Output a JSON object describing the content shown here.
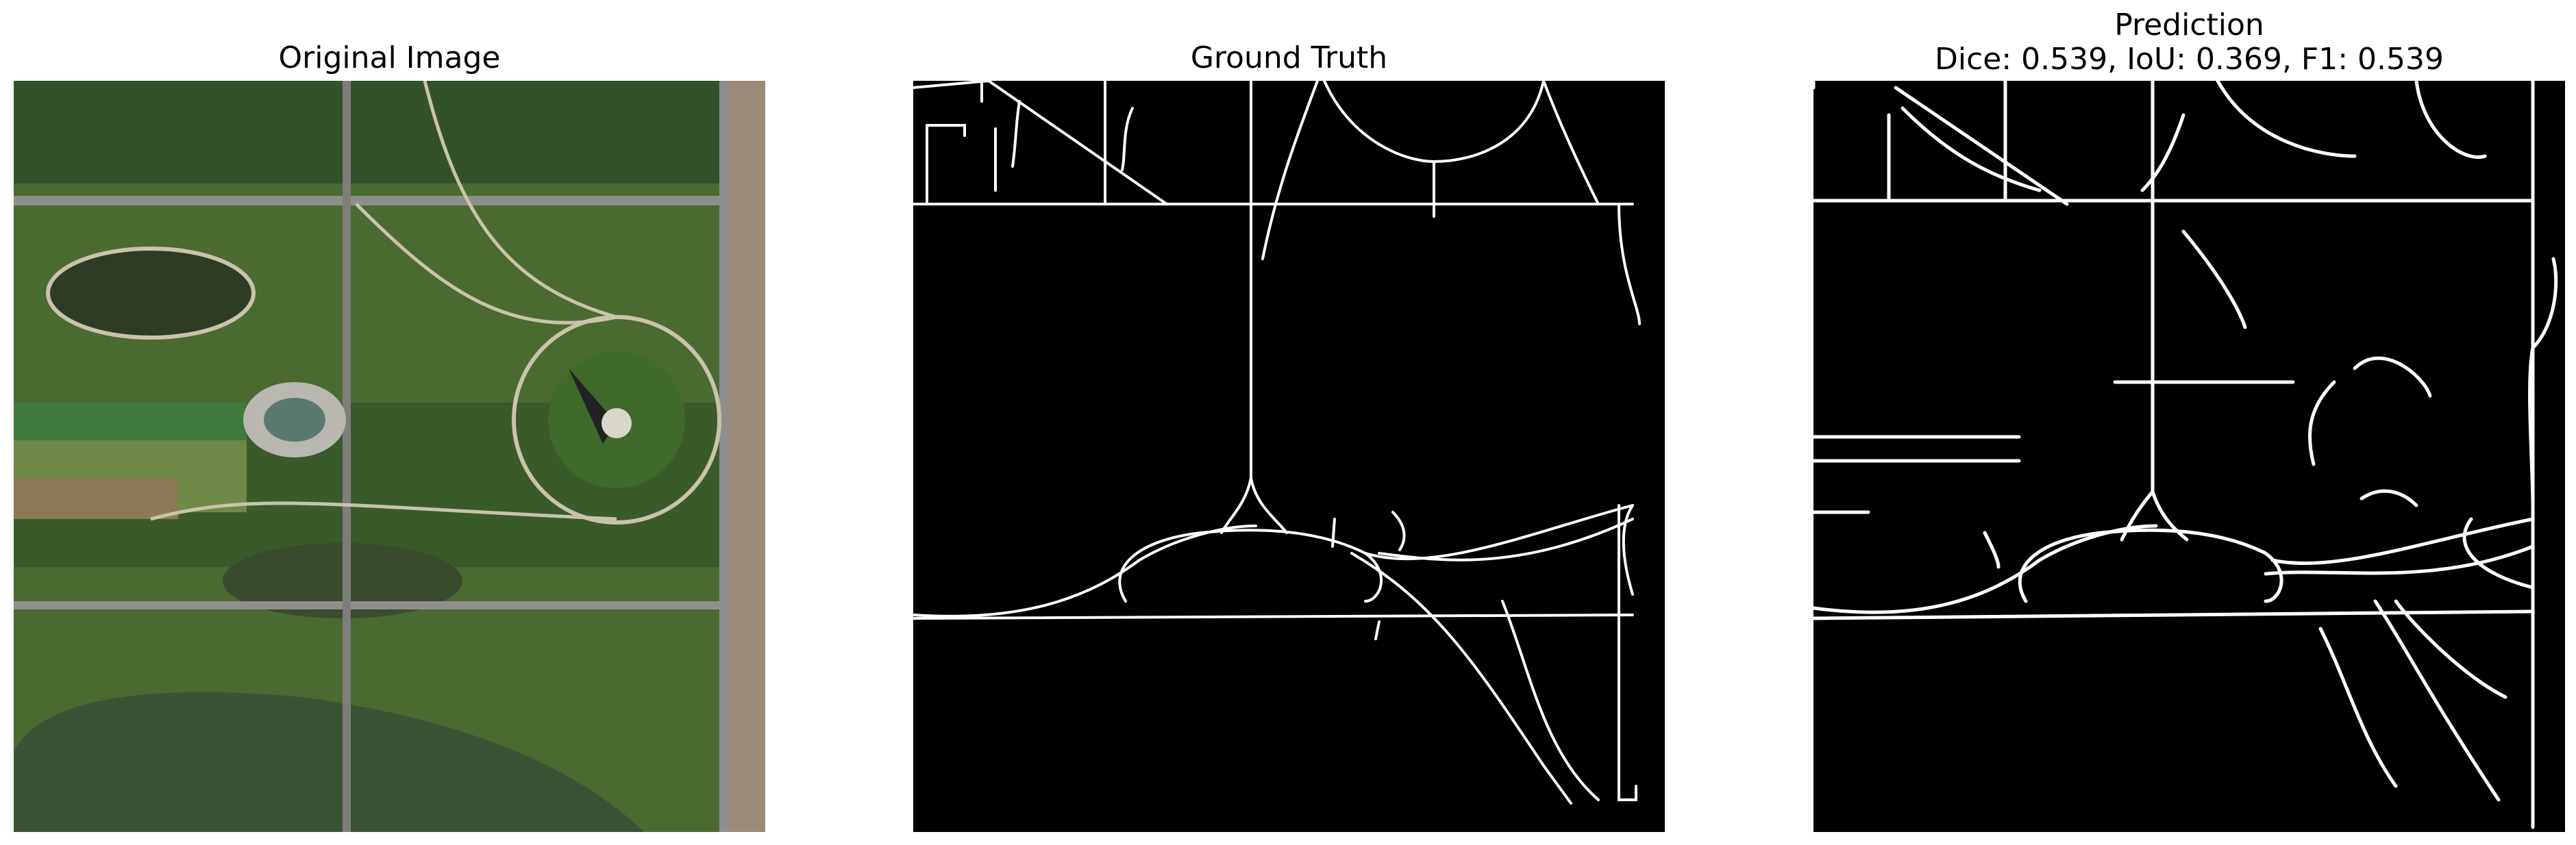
{
  "panels": [
    {
      "title": "Original Image"
    },
    {
      "title": "Ground Truth"
    },
    {
      "title": "Prediction",
      "subtitle": "Dice: 0.539, IoU: 0.369, F1: 0.539"
    }
  ],
  "colors": {
    "background": "#ffffff",
    "mask_bg": "#000000",
    "mask_fg": "#ffffff",
    "lawn": "#4f6e33",
    "tree": "#2c4a1f",
    "water": "#2f4029",
    "path": "#c9c3ad",
    "road": "#8e8e8c"
  },
  "metrics": {
    "dice": 0.539,
    "iou": 0.369,
    "f1": 0.539
  }
}
